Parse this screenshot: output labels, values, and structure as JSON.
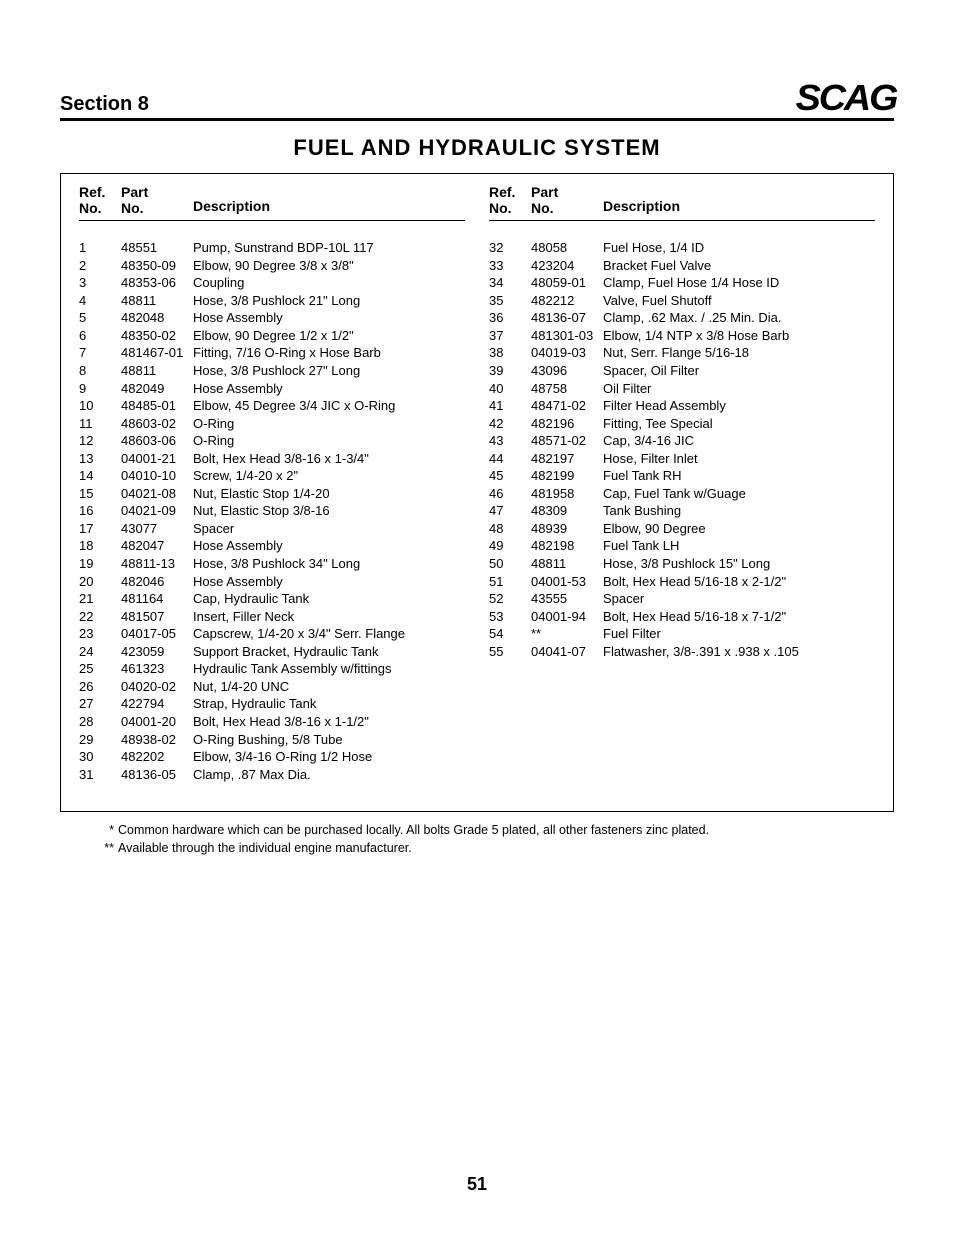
{
  "header": {
    "section_label": "Section 8",
    "logo_text": "SCAG"
  },
  "title": "FUEL AND HYDRAULIC SYSTEM",
  "columns": {
    "ref_no_label_l1": "Ref.",
    "ref_no_label_l2": "No.",
    "part_no_label_l1": "Part",
    "part_no_label_l2": "No.",
    "description_label": "Description"
  },
  "left_parts": [
    {
      "ref": "1",
      "part": "48551",
      "desc": "Pump, Sunstrand BDP-10L 117"
    },
    {
      "ref": "2",
      "part": "48350-09",
      "desc": "Elbow, 90 Degree 3/8 x 3/8\""
    },
    {
      "ref": "3",
      "part": "48353-06",
      "desc": "Coupling"
    },
    {
      "ref": "4",
      "part": "48811",
      "desc": "Hose, 3/8 Pushlock 21\" Long"
    },
    {
      "ref": "5",
      "part": "482048",
      "desc": "Hose Assembly"
    },
    {
      "ref": "6",
      "part": "48350-02",
      "desc": "Elbow, 90 Degree 1/2 x 1/2\""
    },
    {
      "ref": "7",
      "part": "481467-01",
      "desc": "Fitting, 7/16 O-Ring x Hose Barb"
    },
    {
      "ref": "8",
      "part": "48811",
      "desc": "Hose, 3/8 Pushlock 27\" Long"
    },
    {
      "ref": "9",
      "part": "482049",
      "desc": "Hose Assembly"
    },
    {
      "ref": "10",
      "part": "48485-01",
      "desc": "Elbow, 45 Degree 3/4 JIC x O-Ring"
    },
    {
      "ref": "11",
      "part": "48603-02",
      "desc": "O-Ring"
    },
    {
      "ref": "12",
      "part": "48603-06",
      "desc": "O-Ring"
    },
    {
      "ref": "13",
      "part": "04001-21",
      "desc": "Bolt, Hex Head 3/8-16 x 1-3/4\""
    },
    {
      "ref": "14",
      "part": "04010-10",
      "desc": "Screw, 1/4-20 x 2\""
    },
    {
      "ref": "15",
      "part": "04021-08",
      "desc": "Nut, Elastic Stop 1/4-20"
    },
    {
      "ref": "16",
      "part": "04021-09",
      "desc": "Nut, Elastic Stop 3/8-16"
    },
    {
      "ref": "17",
      "part": "43077",
      "desc": "Spacer"
    },
    {
      "ref": "18",
      "part": "482047",
      "desc": "Hose Assembly"
    },
    {
      "ref": "19",
      "part": "48811-13",
      "desc": "Hose, 3/8 Pushlock 34\" Long"
    },
    {
      "ref": "20",
      "part": "482046",
      "desc": "Hose Assembly"
    },
    {
      "ref": "21",
      "part": "481164",
      "desc": "Cap, Hydraulic Tank"
    },
    {
      "ref": "22",
      "part": "481507",
      "desc": "Insert, Filler Neck"
    },
    {
      "ref": "23",
      "part": "04017-05",
      "desc": "Capscrew, 1/4-20 x 3/4\" Serr. Flange"
    },
    {
      "ref": "24",
      "part": "423059",
      "desc": "Support Bracket, Hydraulic Tank"
    },
    {
      "ref": "25",
      "part": "461323",
      "desc": "Hydraulic Tank Assembly w/fittings"
    },
    {
      "ref": "26",
      "part": "04020-02",
      "desc": "Nut, 1/4-20 UNC"
    },
    {
      "ref": "27",
      "part": "422794",
      "desc": "Strap, Hydraulic Tank"
    },
    {
      "ref": "28",
      "part": "04001-20",
      "desc": "Bolt, Hex Head 3/8-16 x 1-1/2\""
    },
    {
      "ref": "29",
      "part": "48938-02",
      "desc": "O-Ring Bushing, 5/8 Tube"
    },
    {
      "ref": "30",
      "part": "482202",
      "desc": "Elbow, 3/4-16 O-Ring 1/2 Hose"
    },
    {
      "ref": "31",
      "part": "48136-05",
      "desc": "Clamp, .87 Max Dia."
    }
  ],
  "right_parts": [
    {
      "ref": "32",
      "part": "48058",
      "desc": "Fuel Hose, 1/4 ID"
    },
    {
      "ref": "33",
      "part": "423204",
      "desc": "Bracket Fuel Valve"
    },
    {
      "ref": "34",
      "part": "48059-01",
      "desc": "Clamp, Fuel Hose 1/4 Hose ID"
    },
    {
      "ref": "35",
      "part": "482212",
      "desc": "Valve, Fuel Shutoff"
    },
    {
      "ref": "36",
      "part": "48136-07",
      "desc": "Clamp, .62 Max. / .25 Min. Dia."
    },
    {
      "ref": "37",
      "part": "481301-03",
      "desc": "Elbow, 1/4 NTP x 3/8 Hose Barb"
    },
    {
      "ref": "38",
      "part": "04019-03",
      "desc": "Nut, Serr. Flange 5/16-18"
    },
    {
      "ref": "39",
      "part": "43096",
      "desc": "Spacer, Oil Filter"
    },
    {
      "ref": "40",
      "part": "48758",
      "desc": "Oil Filter"
    },
    {
      "ref": "41",
      "part": "48471-02",
      "desc": "Filter Head Assembly"
    },
    {
      "ref": "42",
      "part": "482196",
      "desc": "Fitting, Tee Special"
    },
    {
      "ref": "43",
      "part": "48571-02",
      "desc": "Cap, 3/4-16 JIC"
    },
    {
      "ref": "44",
      "part": "482197",
      "desc": "Hose, Filter Inlet"
    },
    {
      "ref": "45",
      "part": "482199",
      "desc": "Fuel Tank RH"
    },
    {
      "ref": "46",
      "part": "481958",
      "desc": "Cap, Fuel Tank w/Guage"
    },
    {
      "ref": "47",
      "part": "48309",
      "desc": "Tank Bushing"
    },
    {
      "ref": "48",
      "part": "48939",
      "desc": "Elbow, 90 Degree"
    },
    {
      "ref": "49",
      "part": "482198",
      "desc": "Fuel Tank LH"
    },
    {
      "ref": "50",
      "part": "48811",
      "desc": "Hose, 3/8 Pushlock 15\" Long"
    },
    {
      "ref": "51",
      "part": "04001-53",
      "desc": "Bolt, Hex Head 5/16-18 x 2-1/2\""
    },
    {
      "ref": "52",
      "part": "43555",
      "desc": "Spacer"
    },
    {
      "ref": "53",
      "part": "04001-94",
      "desc": "Bolt, Hex Head 5/16-18 x 7-1/2\""
    },
    {
      "ref": "54",
      "part": "**",
      "desc": "Fuel Filter"
    },
    {
      "ref": "55",
      "part": "04041-07",
      "desc": "Flatwasher, 3/8-.391 x .938 x .105"
    }
  ],
  "footnotes": [
    {
      "mark": "*",
      "text": "Common hardware which can be purchased locally.  All bolts Grade 5 plated, all other fasteners zinc plated."
    },
    {
      "mark": "**",
      "text": "Available through the individual engine manufacturer."
    }
  ],
  "page_number": "51"
}
